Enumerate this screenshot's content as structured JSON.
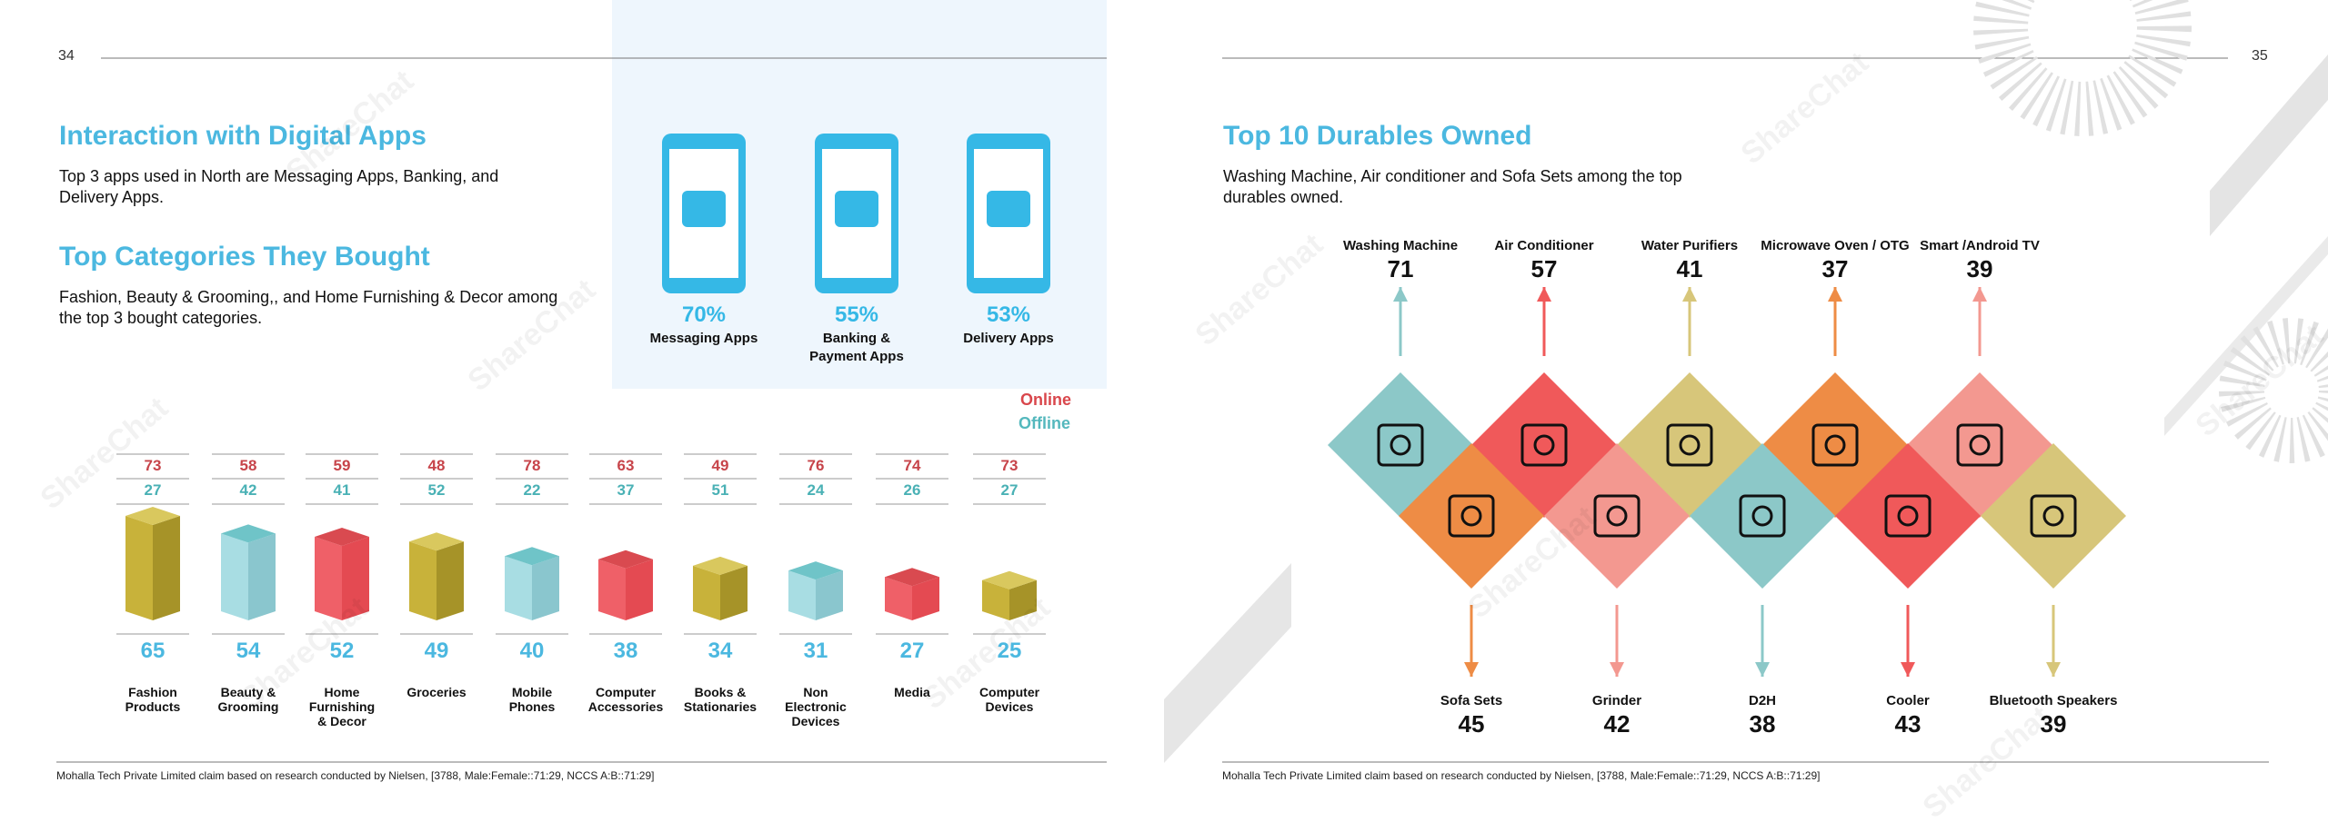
{
  "watermark": "ShareChat",
  "left_page": {
    "page_number": "34",
    "title": "Interaction with Digital Apps",
    "text": "Top 3 apps used in North are Messaging Apps, Banking, and Delivery Apps.",
    "subtitle": "Top Categories They Bought",
    "subtext": "Fashion, Beauty & Grooming,, and Home Furnishing & Decor among the top 3 bought categories.",
    "apps": [
      {
        "percent": "70%",
        "label": "Messaging Apps"
      },
      {
        "percent": "55%",
        "label": "Banking & Payment Apps"
      },
      {
        "percent": "53%",
        "label": "Delivery Apps"
      }
    ],
    "legend": [
      "Online",
      "Offline"
    ],
    "categories": [
      {
        "label": "Fashion Products",
        "online": 73,
        "offline": 27,
        "total": 65
      },
      {
        "label": "Beauty & Grooming",
        "online": 58,
        "offline": 42,
        "total": 54
      },
      {
        "label": "Home Furnishing & Decor",
        "online": 59,
        "offline": 41,
        "total": 52
      },
      {
        "label": "Groceries",
        "online": 48,
        "offline": 52,
        "total": 49
      },
      {
        "label": "Mobile Phones",
        "online": 78,
        "offline": 22,
        "total": 40
      },
      {
        "label": "Computer Accessories",
        "online": 63,
        "offline": 37,
        "total": 38
      },
      {
        "label": "Books & Stationaries",
        "online": 49,
        "offline": 51,
        "total": 34
      },
      {
        "label": "Non Electronic Devices",
        "online": 76,
        "offline": 24,
        "total": 31
      },
      {
        "label": "Media",
        "online": 74,
        "offline": 26,
        "total": 27
      },
      {
        "label": "Computer Devices",
        "online": 73,
        "offline": 27,
        "total": 25
      }
    ],
    "footnote": "Mohalla Tech Private Limited claim based on research conducted by Nielsen, [3788, Male:Female::71:29, NCCS A:B::71:29]"
  },
  "right_page": {
    "page_number": "35",
    "title": "Top 10 Durables Owned",
    "text": "Washing Machine, Air conditioner and Sofa Sets among the top durables owned.",
    "top": [
      {
        "name": "Washing Machine",
        "value": 71
      },
      {
        "name": "Air Conditioner",
        "value": 57
      },
      {
        "name": "Water Purifiers",
        "value": 41
      },
      {
        "name": "Microwave Oven / OTG",
        "value": 37
      },
      {
        "name": "Smart /Android TV",
        "value": 39
      }
    ],
    "bottom": [
      {
        "name": "Sofa Sets",
        "value": 45
      },
      {
        "name": "Grinder",
        "value": 42
      },
      {
        "name": "D2H",
        "value": 38
      },
      {
        "name": "Cooler",
        "value": 43
      },
      {
        "name": "Bluetooth Speakers",
        "value": 39
      }
    ],
    "footnote": "Mohalla Tech Private Limited claim based on research conducted by Nielsen, [3788, Male:Female::71:29, NCCS A:B::71:29]"
  }
}
